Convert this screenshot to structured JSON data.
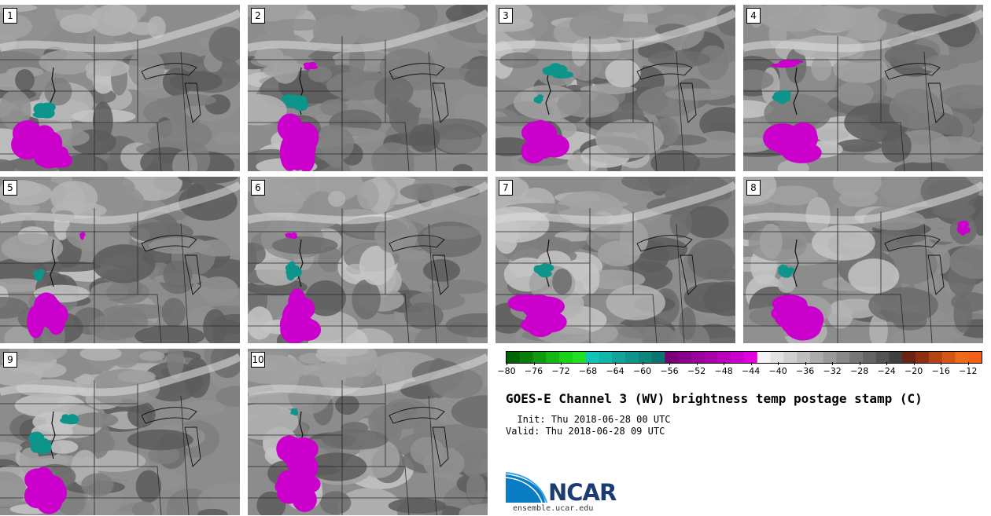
{
  "title": "GOES-E Channel 3 (WV) brightness temp postage stamp (C)",
  "init": "  Init: Thu 2018-06-28 00 UTC",
  "valid": "Valid: Thu 2018-06-28 09 UTC",
  "website": "ensemble.ucar.edu",
  "logo_text": "NCAR",
  "panels": [
    "1",
    "2",
    "3",
    "4",
    "5",
    "6",
    "7",
    "8",
    "9",
    "10"
  ],
  "colorbar": {
    "unit": "C",
    "min": -80,
    "max": -10,
    "step": 2,
    "tick_labels": [
      "−80",
      "−76",
      "−72",
      "−68",
      "−64",
      "−60",
      "−56",
      "−52",
      "−48",
      "−44",
      "−40",
      "−36",
      "−32",
      "−28",
      "−24",
      "−20",
      "−16",
      "−12"
    ],
    "tick_values": [
      -80,
      -76,
      -72,
      -68,
      -64,
      -60,
      -56,
      -52,
      -48,
      -44,
      -40,
      -36,
      -32,
      -28,
      -24,
      -20,
      -16,
      -12
    ],
    "colors": [
      "#006400",
      "#0b7d0b",
      "#109a10",
      "#14b814",
      "#18d218",
      "#20e020",
      "#11c4b8",
      "#12b5a9",
      "#10a49a",
      "#0e958b",
      "#0d867d",
      "#0a7670",
      "#7a007a",
      "#8a008a",
      "#9a009a",
      "#aa00aa",
      "#ba00ba",
      "#cc00cc",
      "#e000e0",
      "#f4f4f4",
      "#e2e2e2",
      "#d0d0d0",
      "#bebebe",
      "#acacac",
      "#9a9a9a",
      "#888888",
      "#767676",
      "#646464",
      "#525252",
      "#404040",
      "#6a2410",
      "#8c3010",
      "#b44412",
      "#d45616",
      "#ee6a18",
      "#f26018"
    ]
  }
}
